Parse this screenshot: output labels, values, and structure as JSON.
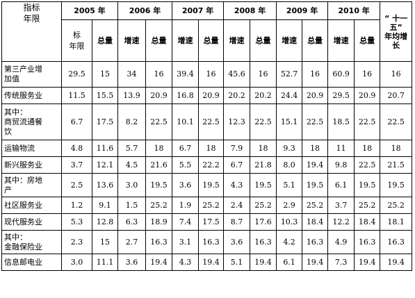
{
  "corner_label": [
    "指标",
    "年限"
  ],
  "year_headers": [
    "2005 年",
    "2006 年",
    "2007 年",
    "2008 年",
    "2009 年",
    "2010 年"
  ],
  "avg_header": [
    "“ 十一",
    "五”",
    "年均增",
    "长"
  ],
  "sub_headers_2005": [
    "标",
    "年限",
    "总量"
  ],
  "sub_growth": "增速",
  "sub_total": "总量",
  "rows": [
    {
      "label": [
        "第三产业增",
        "加值"
      ],
      "values": [
        "29.5",
        "15",
        "34",
        "16",
        "39.4",
        "16",
        "45.6",
        "16",
        "52.7",
        "16",
        "60.9",
        "16",
        "16"
      ]
    },
    {
      "label": [
        "传统服务业"
      ],
      "values": [
        "11.5",
        "15.5",
        "13.9",
        "20.9",
        "16.8",
        "20.9",
        "20.2",
        "20.2",
        "24.4",
        "20.9",
        "29.5",
        "20.9",
        "20.7"
      ]
    },
    {
      "label": [
        "其中：",
        "商贸流通餐",
        "饮"
      ],
      "values": [
        "6.7",
        "17.5",
        "8.2",
        "22.5",
        "10.1",
        "22.5",
        "12.3",
        "22.5",
        "15.1",
        "22.5",
        "18.5",
        "22.5",
        "22.5"
      ]
    },
    {
      "label": [
        "运输物流"
      ],
      "values": [
        "4.8",
        "11.6",
        "5.7",
        "18",
        "6.7",
        "18",
        "7.9",
        "18",
        "9.3",
        "18",
        "11",
        "18",
        "18"
      ]
    },
    {
      "label": [
        "新兴服务业"
      ],
      "values": [
        "3.7",
        "12.1",
        "4.5",
        "21.6",
        "5.5",
        "22.2",
        "6.7",
        "21.8",
        "8.0",
        "19.4",
        "9.8",
        "22.5",
        "21.5"
      ]
    },
    {
      "label": [
        "其中：房地",
        "产"
      ],
      "values": [
        "2.5",
        "13.6",
        "3.0",
        "19.5",
        "3.6",
        "19.5",
        "4.3",
        "19.5",
        "5.1",
        "19.5",
        "6.1",
        "19.5",
        "19.5"
      ]
    },
    {
      "label": [
        "社区服务业"
      ],
      "values": [
        "1.2",
        "9.1",
        "1.5",
        "25.2",
        "1.9",
        "25.2",
        "2.4",
        "25.2",
        "2.9",
        "25.2",
        "3.7",
        "25.2",
        "25.2"
      ]
    },
    {
      "label": [
        "现代服务业"
      ],
      "values": [
        "5.3",
        "12.8",
        "6.3",
        "18.9",
        "7.4",
        "17.5",
        "8.7",
        "17.6",
        "10.3",
        "18.4",
        "12.2",
        "18.4",
        "18.1"
      ]
    },
    {
      "label": [
        "其中：",
        "金融保险业"
      ],
      "values": [
        "2.3",
        "15",
        "2.7",
        "16.3",
        "3.1",
        "16.3",
        "3.6",
        "16.3",
        "4.2",
        "16.3",
        "4.9",
        "16.3",
        "16.3"
      ]
    },
    {
      "label": [
        "信息邮电业"
      ],
      "values": [
        "3.0",
        "11.1",
        "3.6",
        "19.4",
        "4.3",
        "19.4",
        "5.1",
        "19.4",
        "6.1",
        "19.4",
        "7.3",
        "19.4",
        "19.4"
      ]
    }
  ]
}
